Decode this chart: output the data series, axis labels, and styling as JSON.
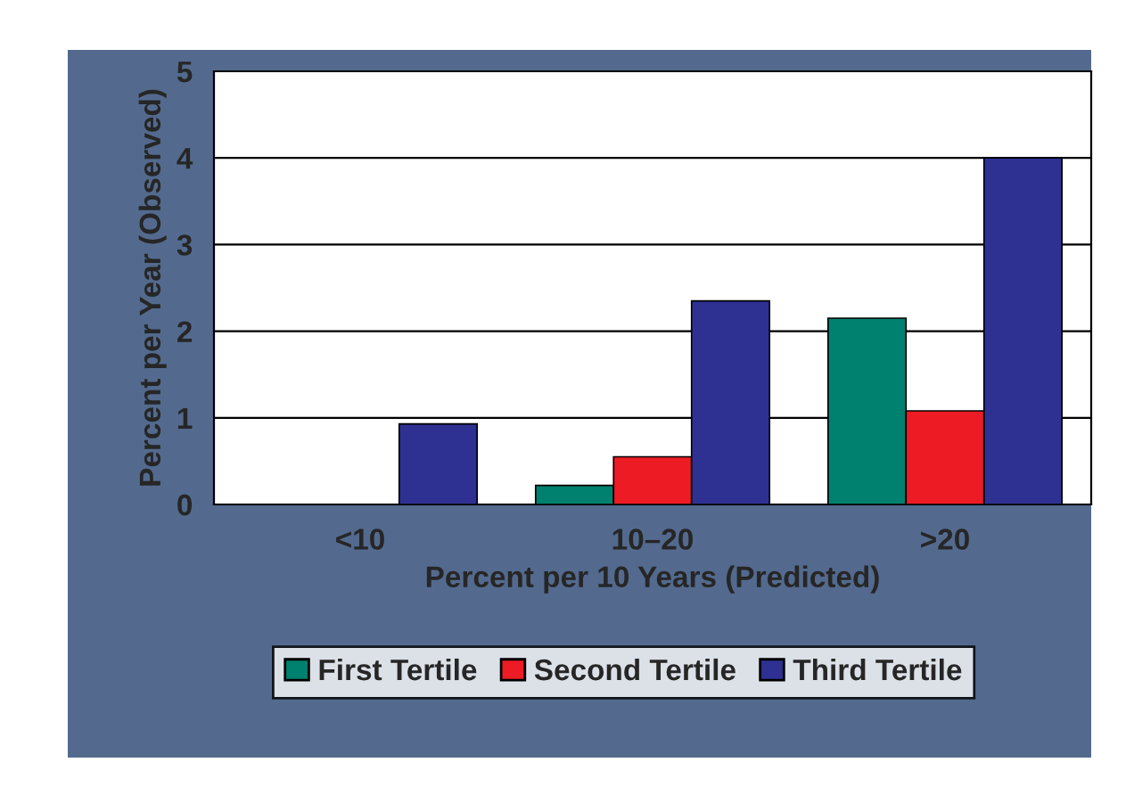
{
  "chart_data": {
    "type": "bar",
    "xlabel": "Percent per 10 Years (Predicted)",
    "ylabel": "Percent per Year (Observed)",
    "categories": [
      "<10",
      "10–20",
      ">20"
    ],
    "series": [
      {
        "name": "First Tertile",
        "color": "#00806e",
        "values": [
          null,
          0.22,
          2.15
        ]
      },
      {
        "name": "Second Tertile",
        "color": "#ed1c24",
        "values": [
          null,
          0.55,
          1.08
        ]
      },
      {
        "name": "Third Tertile",
        "color": "#2e3192",
        "values": [
          0.93,
          2.35,
          4.0
        ]
      }
    ],
    "ylim": [
      0,
      5
    ],
    "yticks": [
      0,
      1,
      2,
      3,
      4,
      5
    ],
    "grid": "y",
    "legend": "bottom"
  }
}
